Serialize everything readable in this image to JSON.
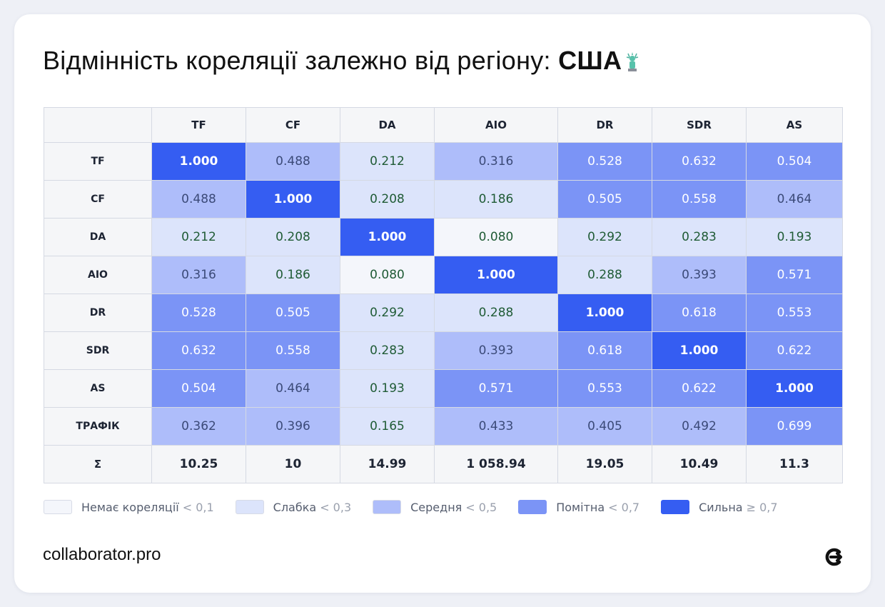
{
  "header": {
    "title_prefix": "Відмінність кореляції залежно від регіону:",
    "title_region": "США",
    "region_icon": "statue-of-liberty-icon"
  },
  "chart_data": {
    "type": "heatmap",
    "columns": [
      "TF",
      "CF",
      "DA",
      "AIO",
      "DR",
      "SDR",
      "AS"
    ],
    "rows": [
      "TF",
      "CF",
      "DA",
      "AIO",
      "DR",
      "SDR",
      "AS",
      "ТРАФІК"
    ],
    "values": [
      [
        1.0,
        0.488,
        0.212,
        0.316,
        0.528,
        0.632,
        0.504
      ],
      [
        0.488,
        1.0,
        0.208,
        0.186,
        0.505,
        0.558,
        0.464
      ],
      [
        0.212,
        0.208,
        1.0,
        0.08,
        0.292,
        0.283,
        0.193
      ],
      [
        0.316,
        0.186,
        0.08,
        1.0,
        0.288,
        0.393,
        0.571
      ],
      [
        0.528,
        0.505,
        0.292,
        0.288,
        1.0,
        0.618,
        0.553
      ],
      [
        0.632,
        0.558,
        0.283,
        0.393,
        0.618,
        1.0,
        0.622
      ],
      [
        0.504,
        0.464,
        0.193,
        0.571,
        0.553,
        0.622,
        1.0
      ],
      [
        0.362,
        0.396,
        0.165,
        0.433,
        0.405,
        0.492,
        0.699
      ]
    ],
    "summary_row": {
      "label": "Σ",
      "values": [
        "10.25",
        "10",
        "14.99",
        "1 058.94",
        "19.05",
        "10.49",
        "11.3"
      ]
    },
    "legend": [
      {
        "label": "Немає кореляції",
        "threshold": "< 0,1",
        "color": "#f4f6fb",
        "max": 0.1
      },
      {
        "label": "Слабка",
        "threshold": "< 0,3",
        "color": "#dce4fb",
        "max": 0.3
      },
      {
        "label": "Середня",
        "threshold": "< 0,5",
        "color": "#aebdfa",
        "max": 0.5
      },
      {
        "label": "Помітна",
        "threshold": "< 0,7",
        "color": "#7b94f6",
        "max": 0.7
      },
      {
        "label": "Сильна",
        "threshold": "≥ 0,7",
        "color": "#355df2",
        "max": 99
      }
    ],
    "text_colors": {
      "weak": "#1f5b35",
      "medium": "#3b4a78",
      "strong": "#ffffff"
    }
  },
  "footer": {
    "brand": "collaborator.pro",
    "logo_icon": "collaborator-logo-icon"
  }
}
